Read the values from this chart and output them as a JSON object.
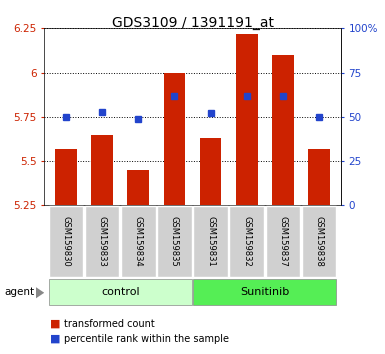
{
  "title": "GDS3109 / 1391191_at",
  "samples": [
    "GSM159830",
    "GSM159833",
    "GSM159834",
    "GSM159835",
    "GSM159831",
    "GSM159832",
    "GSM159837",
    "GSM159838"
  ],
  "red_values": [
    5.57,
    5.65,
    5.45,
    6.0,
    5.63,
    6.22,
    6.1,
    5.57
  ],
  "blue_pct": [
    50,
    53,
    49,
    62,
    52,
    62,
    62,
    50
  ],
  "ylim_left": [
    5.25,
    6.25
  ],
  "ylim_right": [
    0,
    100
  ],
  "yticks_left": [
    5.25,
    5.5,
    5.75,
    6.0,
    6.25
  ],
  "ytick_labels_left": [
    "5.25",
    "5.5",
    "5.75",
    "6",
    "6.25"
  ],
  "yticks_right": [
    0,
    25,
    50,
    75,
    100
  ],
  "ytick_labels_right": [
    "0",
    "25",
    "50",
    "75",
    "100%"
  ],
  "bar_bottom": 5.25,
  "bar_color": "#cc2200",
  "blue_color": "#2244cc",
  "group_labels": [
    "control",
    "Sunitinib"
  ],
  "group_ranges": [
    [
      0,
      3
    ],
    [
      4,
      7
    ]
  ],
  "group_colors_light": [
    "#ccffcc",
    "#55ee55"
  ],
  "agent_label": "agent",
  "legend_red": "transformed count",
  "legend_blue": "percentile rank within the sample",
  "left_tick_color": "#cc2200",
  "right_tick_color": "#2244cc"
}
